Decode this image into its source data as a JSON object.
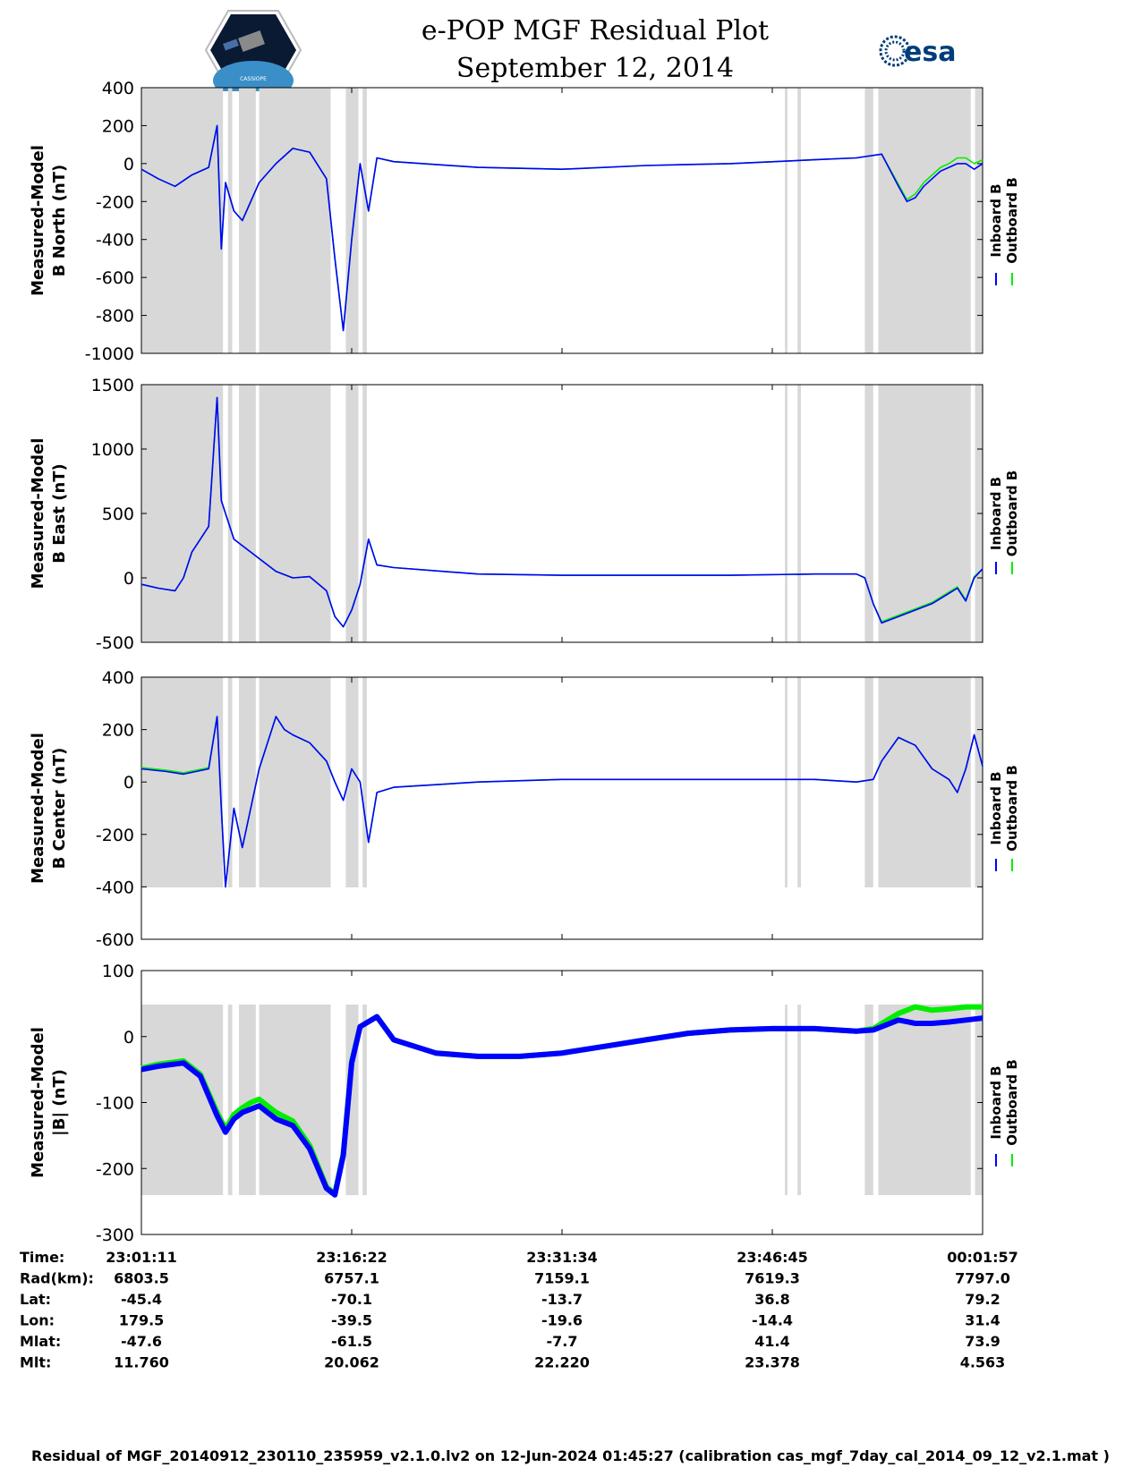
{
  "header": {
    "title": "e-POP MGF Residual Plot",
    "subtitle": "September 12, 2014",
    "logo_left_text": "CASSIOPE",
    "logo_right_text": "esa"
  },
  "colors": {
    "inboard": "#0000ff",
    "outboard": "#00ee00",
    "shade": "#d8d8d8",
    "gridline": "#000000"
  },
  "chart_data": [
    {
      "type": "line",
      "ylabel": [
        "Measured-Model",
        "B North (nT)"
      ],
      "ylim": [
        -1000,
        400
      ],
      "yticks": [
        400,
        200,
        0,
        -200,
        -400,
        -600,
        -800,
        -1000
      ],
      "legend": [
        "Inboard B",
        "Outboard B"
      ],
      "x": [
        0,
        2,
        4,
        6,
        8,
        9,
        9.5,
        10,
        11,
        12,
        14,
        16,
        18,
        20,
        22,
        23,
        24,
        25,
        26,
        27,
        28,
        30,
        40,
        50,
        60,
        70,
        80,
        85,
        88,
        90,
        91,
        92,
        93,
        94,
        95,
        96,
        97,
        98,
        99,
        100
      ],
      "series": [
        {
          "name": "Inboard B",
          "values": [
            -30,
            -80,
            -120,
            -60,
            -20,
            200,
            -450,
            -100,
            -250,
            -300,
            -100,
            0,
            80,
            60,
            -80,
            -500,
            -880,
            -400,
            0,
            -250,
            30,
            10,
            -20,
            -30,
            -10,
            0,
            20,
            30,
            50,
            -120,
            -200,
            -180,
            -120,
            -80,
            -40,
            -20,
            0,
            0,
            -30,
            0
          ]
        },
        {
          "name": "Outboard B",
          "values": [
            -30,
            -80,
            -120,
            -60,
            -20,
            200,
            -450,
            -100,
            -250,
            -300,
            -100,
            0,
            80,
            60,
            -80,
            -500,
            -880,
            -400,
            0,
            -250,
            30,
            10,
            -20,
            -30,
            -10,
            0,
            20,
            30,
            50,
            -110,
            -190,
            -160,
            -100,
            -60,
            -20,
            0,
            30,
            30,
            0,
            20
          ]
        }
      ]
    },
    {
      "type": "line",
      "ylabel": [
        "Measured-Model",
        "B East (nT)"
      ],
      "ylim": [
        -500,
        1500
      ],
      "yticks": [
        1500,
        1000,
        500,
        0,
        -500
      ],
      "legend": [
        "Inboard B",
        "Outboard B"
      ],
      "x": [
        0,
        2,
        4,
        5,
        6,
        8,
        9,
        9.5,
        10,
        11,
        12,
        14,
        16,
        18,
        20,
        22,
        23,
        24,
        25,
        26,
        27,
        28,
        30,
        40,
        50,
        60,
        70,
        80,
        85,
        86,
        87,
        88,
        90,
        92,
        94,
        96,
        97,
        98,
        99,
        100
      ],
      "series": [
        {
          "name": "Inboard B",
          "values": [
            -50,
            -80,
            -100,
            0,
            200,
            400,
            1400,
            600,
            500,
            300,
            250,
            150,
            50,
            0,
            10,
            -100,
            -300,
            -380,
            -250,
            -50,
            300,
            100,
            80,
            30,
            20,
            20,
            20,
            30,
            30,
            0,
            -200,
            -350,
            -300,
            -250,
            -200,
            -120,
            -80,
            -180,
            0,
            70
          ]
        },
        {
          "name": "Outboard B",
          "values": [
            -50,
            -80,
            -100,
            0,
            200,
            400,
            1400,
            600,
            500,
            300,
            250,
            150,
            50,
            0,
            10,
            -100,
            -300,
            -380,
            -250,
            -50,
            300,
            100,
            80,
            30,
            20,
            20,
            20,
            30,
            30,
            0,
            -200,
            -340,
            -290,
            -240,
            -190,
            -110,
            -70,
            -170,
            10,
            70
          ]
        }
      ]
    },
    {
      "type": "line",
      "ylabel": [
        "Measured-Model",
        "B Center (nT)"
      ],
      "ylim": [
        -600,
        400
      ],
      "yticks": [
        400,
        200,
        0,
        -200,
        -400,
        -600
      ],
      "legend": [
        "Inboard B",
        "Outboard B"
      ],
      "x": [
        0,
        3,
        5,
        8,
        9,
        9.5,
        10,
        11,
        12,
        13,
        14,
        15,
        16,
        17,
        18,
        20,
        22,
        23,
        24,
        25,
        26,
        27,
        28,
        30,
        40,
        50,
        60,
        70,
        80,
        85,
        87,
        88,
        90,
        92,
        94,
        96,
        97,
        98,
        99,
        100
      ],
      "series": [
        {
          "name": "Inboard B",
          "values": [
            50,
            40,
            30,
            50,
            250,
            -100,
            -400,
            -100,
            -250,
            -100,
            50,
            150,
            250,
            200,
            180,
            150,
            80,
            0,
            -70,
            50,
            0,
            -230,
            -40,
            -20,
            0,
            10,
            10,
            10,
            10,
            0,
            10,
            80,
            170,
            140,
            50,
            10,
            -40,
            50,
            180,
            60
          ]
        },
        {
          "name": "Outboard B",
          "values": [
            55,
            45,
            35,
            55,
            250,
            -100,
            -400,
            -100,
            -250,
            -100,
            50,
            150,
            250,
            200,
            180,
            150,
            80,
            0,
            -70,
            50,
            0,
            -230,
            -40,
            -20,
            0,
            10,
            10,
            10,
            10,
            0,
            10,
            80,
            170,
            140,
            50,
            10,
            -40,
            50,
            180,
            60
          ]
        }
      ]
    },
    {
      "type": "line",
      "ylabel": [
        "Measured-Model",
        "|B| (nT)"
      ],
      "ylim": [
        -300,
        100
      ],
      "yticks": [
        100,
        0,
        -100,
        -200,
        -300
      ],
      "legend": [
        "Inboard B",
        "Outboard B"
      ],
      "x": [
        0,
        2,
        5,
        7,
        9,
        10,
        11,
        12,
        13,
        14,
        15,
        16,
        18,
        20,
        22,
        23,
        24,
        25,
        26,
        28,
        30,
        35,
        40,
        45,
        50,
        55,
        60,
        65,
        70,
        75,
        80,
        85,
        87,
        90,
        92,
        94,
        96,
        98,
        100
      ],
      "series": [
        {
          "name": "Inboard B",
          "values": [
            -50,
            -45,
            -40,
            -60,
            -120,
            -145,
            -125,
            -115,
            -110,
            -105,
            -115,
            -125,
            -135,
            -170,
            -230,
            -240,
            -180,
            -40,
            15,
            30,
            -5,
            -25,
            -30,
            -30,
            -25,
            -15,
            -5,
            5,
            10,
            12,
            12,
            8,
            10,
            25,
            20,
            20,
            22,
            25,
            28
          ]
        },
        {
          "name": "Outboard B",
          "values": [
            -48,
            -42,
            -37,
            -57,
            -115,
            -140,
            -118,
            -108,
            -100,
            -95,
            -105,
            -115,
            -128,
            -165,
            -228,
            -238,
            -178,
            -38,
            15,
            30,
            -5,
            -25,
            -30,
            -30,
            -25,
            -15,
            -5,
            5,
            10,
            12,
            12,
            8,
            12,
            35,
            45,
            40,
            42,
            45,
            45
          ]
        }
      ]
    }
  ],
  "x_axis": {
    "row_labels": [
      "Time:",
      "Rad(km):",
      "Lat:",
      "Lon:",
      "Mlat:",
      "Mlt:"
    ],
    "columns": [
      {
        "time": "23:01:11",
        "rad": "6803.5",
        "lat": "-45.4",
        "lon": "179.5",
        "mlat": "-47.6",
        "mlt": "11.760"
      },
      {
        "time": "23:16:22",
        "rad": "6757.1",
        "lat": "-70.1",
        "lon": "-39.5",
        "mlat": "-61.5",
        "mlt": "20.062"
      },
      {
        "time": "23:31:34",
        "rad": "7159.1",
        "lat": "-13.7",
        "lon": "-19.6",
        "mlat": "-7.7",
        "mlt": "22.220"
      },
      {
        "time": "23:46:45",
        "rad": "7619.3",
        "lat": "36.8",
        "lon": "-14.4",
        "mlat": "41.4",
        "mlt": "23.378"
      },
      {
        "time": "00:01:57",
        "rad": "7797.0",
        "lat": "79.2",
        "lon": "31.4",
        "mlat": "73.9",
        "mlt": "4.563"
      }
    ]
  },
  "footer": "Residual of MGF_20140912_230110_235959_v2.1.0.lv2 on 12-Jun-2024 01:45:27 (calibration cas_mgf_7day_cal_2014_09_12_v2.1.mat )"
}
